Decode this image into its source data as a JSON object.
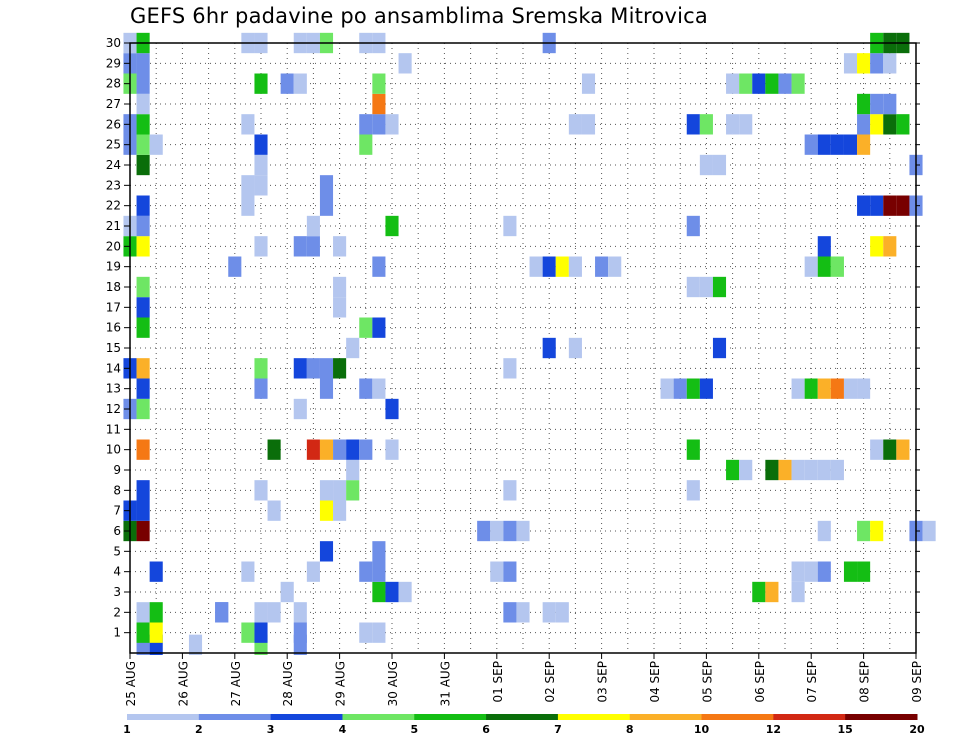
{
  "chart_data": {
    "type": "heatmap",
    "title": "GEFS 6hr padavine po ansamblima Sremska Mitrovica",
    "xlabel": "",
    "ylabel": "",
    "x_ticks": [
      "25 AUG",
      "26 AUG",
      "27 AUG",
      "28 AUG",
      "29 AUG",
      "30 AUG",
      "31 AUG",
      "01 SEP",
      "02 SEP",
      "03 SEP",
      "04 SEP",
      "05 SEP",
      "06 SEP",
      "07 SEP",
      "08 SEP",
      "09 SEP"
    ],
    "y_ticks": [
      "1",
      "2",
      "3",
      "4",
      "5",
      "6",
      "7",
      "8",
      "9",
      "10",
      "11",
      "12",
      "13",
      "14",
      "15",
      "16",
      "17",
      "18",
      "19",
      "20",
      "21",
      "22",
      "23",
      "24",
      "25",
      "26",
      "27",
      "28",
      "29",
      "30"
    ],
    "grid": true,
    "legend_placement": "bottom",
    "legend_levels": [
      "1",
      "2",
      "3",
      "4",
      "5",
      "6",
      "7",
      "8",
      "10",
      "12",
      "15",
      "20"
    ],
    "legend_colors": [
      "#b4c6ef",
      "#6e8ee8",
      "#1446dc",
      "#6ee664",
      "#14be14",
      "#0a6e0a",
      "#ffff00",
      "#fbb028",
      "#f57814",
      "#d22814",
      "#780000"
    ],
    "cells": [
      [
        25.25,
        0,
        2
      ],
      [
        25.5,
        0,
        3
      ],
      [
        26.25,
        0,
        1
      ],
      [
        27.5,
        0,
        4
      ],
      [
        28.25,
        0,
        2
      ],
      [
        25.25,
        1,
        5
      ],
      [
        25.5,
        1,
        7
      ],
      [
        27.25,
        1,
        4
      ],
      [
        27.5,
        1,
        3
      ],
      [
        28.25,
        1,
        2
      ],
      [
        29.5,
        1,
        1
      ],
      [
        29.75,
        1,
        1
      ],
      [
        25.25,
        2,
        1
      ],
      [
        25.5,
        2,
        5
      ],
      [
        27.5,
        2,
        1
      ],
      [
        27.75,
        2,
        1
      ],
      [
        28.25,
        2,
        1
      ],
      [
        26.75,
        2,
        2
      ],
      [
        26.75,
        2,
        2
      ],
      [
        32.25,
        2,
        2
      ],
      [
        32.5,
        2,
        1
      ],
      [
        33.0,
        2,
        1
      ],
      [
        33.25,
        2,
        1
      ],
      [
        28.0,
        3,
        1
      ],
      [
        29.75,
        3,
        5
      ],
      [
        30.0,
        3,
        3
      ],
      [
        30.25,
        3,
        1
      ],
      [
        37.0,
        3,
        5
      ],
      [
        37.25,
        3,
        8
      ],
      [
        37.75,
        3,
        1
      ],
      [
        25.5,
        4,
        3
      ],
      [
        27.25,
        4,
        1
      ],
      [
        28.5,
        4,
        1
      ],
      [
        29.5,
        4,
        2
      ],
      [
        29.75,
        4,
        2
      ],
      [
        32.0,
        4,
        1
      ],
      [
        32.25,
        4,
        2
      ],
      [
        37.75,
        4,
        1
      ],
      [
        38.0,
        4,
        1
      ],
      [
        38.25,
        4,
        2
      ],
      [
        38.75,
        4,
        5
      ],
      [
        39.0,
        4,
        5
      ],
      [
        28.75,
        5,
        3
      ],
      [
        29.75,
        5,
        2
      ],
      [
        25.0,
        6,
        6
      ],
      [
        25.25,
        6,
        11
      ],
      [
        31.75,
        6,
        2
      ],
      [
        32.0,
        6,
        1
      ],
      [
        32.25,
        6,
        2
      ],
      [
        32.5,
        6,
        1
      ],
      [
        38.25,
        6,
        1
      ],
      [
        39.0,
        6,
        4
      ],
      [
        39.25,
        6,
        7
      ],
      [
        40.0,
        6,
        2
      ],
      [
        40.25,
        6,
        1
      ],
      [
        25.0,
        7,
        3
      ],
      [
        25.25,
        7,
        3
      ],
      [
        27.75,
        7,
        1
      ],
      [
        28.75,
        7,
        7
      ],
      [
        29.0,
        7,
        1
      ],
      [
        25.25,
        8,
        3
      ],
      [
        27.5,
        8,
        1
      ],
      [
        28.75,
        8,
        1
      ],
      [
        29.0,
        8,
        1
      ],
      [
        29.25,
        8,
        4
      ],
      [
        32.25,
        8,
        1
      ],
      [
        35.75,
        8,
        1
      ],
      [
        29.25,
        9,
        1
      ],
      [
        36.5,
        9,
        5
      ],
      [
        36.75,
        9,
        1
      ],
      [
        37.25,
        9,
        6
      ],
      [
        37.5,
        9,
        8
      ],
      [
        37.75,
        9,
        1
      ],
      [
        38.0,
        9,
        1
      ],
      [
        38.25,
        9,
        1
      ],
      [
        38.5,
        9,
        1
      ],
      [
        25.25,
        10,
        9
      ],
      [
        27.75,
        10,
        6
      ],
      [
        28.5,
        10,
        10
      ],
      [
        28.75,
        10,
        8
      ],
      [
        29.0,
        10,
        2
      ],
      [
        29.25,
        10,
        3
      ],
      [
        29.5,
        10,
        2
      ],
      [
        30.0,
        10,
        1
      ],
      [
        35.75,
        10,
        5
      ],
      [
        39.25,
        10,
        1
      ],
      [
        39.5,
        10,
        6
      ],
      [
        39.75,
        10,
        8
      ],
      [
        25.0,
        12,
        2
      ],
      [
        25.25,
        12,
        4
      ],
      [
        28.25,
        12,
        1
      ],
      [
        30.0,
        12,
        3
      ],
      [
        25.25,
        13,
        3
      ],
      [
        27.5,
        13,
        2
      ],
      [
        28.75,
        13,
        2
      ],
      [
        29.5,
        13,
        2
      ],
      [
        29.75,
        13,
        1
      ],
      [
        35.25,
        13,
        1
      ],
      [
        35.5,
        13,
        2
      ],
      [
        35.75,
        13,
        5
      ],
      [
        36.0,
        13,
        3
      ],
      [
        37.75,
        13,
        1
      ],
      [
        38.0,
        13,
        5
      ],
      [
        38.25,
        13,
        8
      ],
      [
        38.5,
        13,
        9
      ],
      [
        38.75,
        13,
        1
      ],
      [
        39.0,
        13,
        1
      ],
      [
        25.0,
        14,
        3
      ],
      [
        25.25,
        14,
        8
      ],
      [
        27.5,
        14,
        4
      ],
      [
        28.25,
        14,
        3
      ],
      [
        28.5,
        14,
        2
      ],
      [
        28.75,
        14,
        2
      ],
      [
        29.0,
        14,
        6
      ],
      [
        32.25,
        14,
        1
      ],
      [
        29.25,
        15,
        1
      ],
      [
        33.0,
        15,
        3
      ],
      [
        33.5,
        15,
        1
      ],
      [
        36.25,
        15,
        3
      ],
      [
        25.25,
        16,
        5
      ],
      [
        29.5,
        16,
        4
      ],
      [
        29.75,
        16,
        3
      ],
      [
        25.25,
        17,
        3
      ],
      [
        29.0,
        17,
        1
      ],
      [
        25.25,
        18,
        4
      ],
      [
        29.0,
        18,
        1
      ],
      [
        35.75,
        18,
        1
      ],
      [
        36.0,
        18,
        1
      ],
      [
        36.25,
        18,
        5
      ],
      [
        27.0,
        19,
        2
      ],
      [
        29.75,
        19,
        2
      ],
      [
        32.75,
        19,
        1
      ],
      [
        33.0,
        19,
        3
      ],
      [
        33.25,
        19,
        7
      ],
      [
        33.5,
        19,
        1
      ],
      [
        34.0,
        19,
        2
      ],
      [
        34.25,
        19,
        1
      ],
      [
        38.0,
        19,
        1
      ],
      [
        38.25,
        19,
        5
      ],
      [
        38.5,
        19,
        4
      ],
      [
        25.0,
        20,
        5
      ],
      [
        25.25,
        20,
        7
      ],
      [
        27.5,
        20,
        1
      ],
      [
        28.25,
        20,
        2
      ],
      [
        28.5,
        20,
        2
      ],
      [
        29.0,
        20,
        1
      ],
      [
        38.25,
        20,
        3
      ],
      [
        39.25,
        20,
        7
      ],
      [
        39.5,
        20,
        8
      ],
      [
        25.0,
        21,
        1
      ],
      [
        25.25,
        21,
        2
      ],
      [
        28.5,
        21,
        1
      ],
      [
        30.0,
        21,
        5
      ],
      [
        32.25,
        21,
        1
      ],
      [
        35.75,
        21,
        2
      ],
      [
        25.25,
        22,
        3
      ],
      [
        27.25,
        22,
        1
      ],
      [
        28.75,
        22,
        2
      ],
      [
        39.0,
        22,
        3
      ],
      [
        39.25,
        22,
        3
      ],
      [
        39.5,
        22,
        11
      ],
      [
        39.75,
        22,
        11
      ],
      [
        40.0,
        22,
        2
      ],
      [
        27.25,
        23,
        1
      ],
      [
        27.5,
        23,
        1
      ],
      [
        28.75,
        23,
        2
      ],
      [
        25.25,
        24,
        6
      ],
      [
        27.5,
        24,
        1
      ],
      [
        36.0,
        24,
        1
      ],
      [
        36.25,
        24,
        1
      ],
      [
        40.0,
        24,
        2
      ],
      [
        25.0,
        25,
        2
      ],
      [
        25.25,
        25,
        4
      ],
      [
        25.5,
        25,
        1
      ],
      [
        27.5,
        25,
        3
      ],
      [
        29.5,
        25,
        4
      ],
      [
        38.0,
        25,
        2
      ],
      [
        38.25,
        25,
        3
      ],
      [
        38.5,
        25,
        3
      ],
      [
        38.75,
        25,
        3
      ],
      [
        39.0,
        25,
        8
      ],
      [
        25.0,
        26,
        2
      ],
      [
        25.25,
        26,
        5
      ],
      [
        27.25,
        26,
        1
      ],
      [
        29.5,
        26,
        2
      ],
      [
        29.75,
        26,
        2
      ],
      [
        30.0,
        26,
        1
      ],
      [
        33.5,
        26,
        1
      ],
      [
        33.75,
        26,
        1
      ],
      [
        35.75,
        26,
        3
      ],
      [
        36.0,
        26,
        4
      ],
      [
        36.5,
        26,
        1
      ],
      [
        36.75,
        26,
        1
      ],
      [
        39.0,
        26,
        2
      ],
      [
        39.25,
        26,
        7
      ],
      [
        39.5,
        26,
        6
      ],
      [
        39.75,
        26,
        5
      ],
      [
        25.25,
        27,
        1
      ],
      [
        29.75,
        27,
        9
      ],
      [
        39.0,
        27,
        5
      ],
      [
        39.25,
        27,
        2
      ],
      [
        39.5,
        27,
        2
      ],
      [
        25.0,
        28,
        4
      ],
      [
        25.25,
        28,
        2
      ],
      [
        27.5,
        28,
        5
      ],
      [
        28.0,
        28,
        2
      ],
      [
        28.25,
        28,
        1
      ],
      [
        29.75,
        28,
        4
      ],
      [
        33.75,
        28,
        1
      ],
      [
        36.5,
        28,
        1
      ],
      [
        36.75,
        28,
        4
      ],
      [
        37.0,
        28,
        3
      ],
      [
        37.25,
        28,
        5
      ],
      [
        37.5,
        28,
        2
      ],
      [
        37.75,
        28,
        4
      ],
      [
        25.0,
        29,
        2
      ],
      [
        25.25,
        29,
        2
      ],
      [
        30.25,
        29,
        1
      ],
      [
        38.75,
        29,
        1
      ],
      [
        39.0,
        29,
        7
      ],
      [
        39.25,
        29,
        2
      ],
      [
        39.5,
        29,
        1
      ],
      [
        25.0,
        30,
        1
      ],
      [
        25.25,
        30,
        5
      ],
      [
        27.25,
        30,
        1
      ],
      [
        27.5,
        30,
        1
      ],
      [
        28.25,
        30,
        1
      ],
      [
        28.5,
        30,
        1
      ],
      [
        28.75,
        30,
        4
      ],
      [
        29.5,
        30,
        1
      ],
      [
        29.75,
        30,
        1
      ],
      [
        33.0,
        30,
        2
      ],
      [
        39.25,
        30,
        5
      ],
      [
        39.5,
        30,
        6
      ],
      [
        39.75,
        30,
        6
      ]
    ]
  }
}
